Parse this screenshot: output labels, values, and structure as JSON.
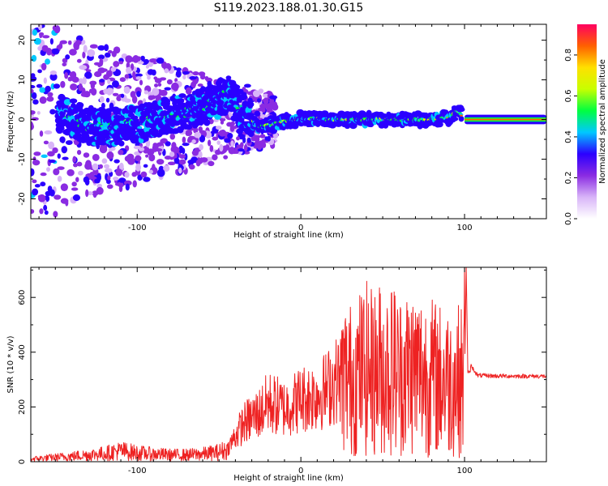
{
  "figure": {
    "title": "S119.2023.188.01.30.G15"
  },
  "chart_data": [
    {
      "type": "heatmap",
      "xlabel": "Height of straight line (km)",
      "ylabel": "Frequency (Hz)",
      "xlim": [
        -165,
        150
      ],
      "ylim": [
        -25,
        24
      ],
      "xticks": [
        -100,
        0,
        100
      ],
      "yticks": [
        -20,
        -10,
        0,
        10,
        20
      ],
      "colorbar": {
        "label": "Normalized spectral amplitude",
        "range": [
          0,
          0.95
        ],
        "ticks": [
          0.0,
          0.2,
          0.4,
          0.6,
          0.8
        ],
        "colors": [
          "#ffffff",
          "#d8b4f8",
          "#8a2be2",
          "#2b00ff",
          "#00c8ff",
          "#00ff40",
          "#c8ff00",
          "#ffe000",
          "#ff6000",
          "#ff0060"
        ]
      },
      "ridge": {
        "x": [
          -145,
          -130,
          -115,
          -100,
          -85,
          -70,
          -55,
          -45,
          -38,
          -32,
          -26,
          -20,
          -10,
          0,
          20,
          40,
          60,
          80,
          90,
          96,
          100,
          150
        ],
        "y": [
          1.5,
          -1.5,
          -2,
          -1,
          0.5,
          2,
          4,
          6.5,
          3,
          1,
          -2,
          -1.5,
          -0.5,
          0.2,
          0,
          0,
          0,
          0,
          0.5,
          2,
          0,
          0
        ]
      }
    },
    {
      "type": "line",
      "xlabel": "Height of straight line (km)",
      "ylabel": "SNR (10 * v/v)",
      "xlim": [
        -165,
        150
      ],
      "ylim": [
        0,
        710
      ],
      "xticks": [
        -100,
        0,
        100
      ],
      "yticks": [
        0,
        200,
        400,
        600
      ],
      "series": [
        {
          "color": "#ee2222",
          "x": [
            -165,
            -140,
            -120,
            -110,
            -100,
            -90,
            -80,
            -70,
            -60,
            -50,
            -45,
            -40,
            -35,
            -30,
            -25,
            -20,
            -15,
            -10,
            -5,
            0,
            5,
            10,
            15,
            20,
            25,
            30,
            35,
            40,
            45,
            50,
            55,
            60,
            65,
            70,
            75,
            80,
            85,
            90,
            95,
            100,
            101,
            102,
            103,
            104,
            108,
            120,
            150
          ],
          "y": [
            10,
            20,
            30,
            40,
            32,
            28,
            25,
            25,
            28,
            35,
            45,
            95,
            140,
            160,
            180,
            215,
            205,
            195,
            210,
            230,
            235,
            245,
            260,
            290,
            310,
            300,
            320,
            340,
            325,
            330,
            340,
            320,
            330,
            330,
            320,
            310,
            300,
            290,
            300,
            290,
            710,
            330,
            320,
            350,
            315,
            313,
            312
          ]
        }
      ],
      "peaks": [
        {
          "x": 48,
          "y": 635
        },
        {
          "x": 57,
          "y": 620
        },
        {
          "x": 100,
          "y": 710
        },
        {
          "x": 44,
          "y": 560
        },
        {
          "x": 89,
          "y": 480
        }
      ]
    }
  ]
}
